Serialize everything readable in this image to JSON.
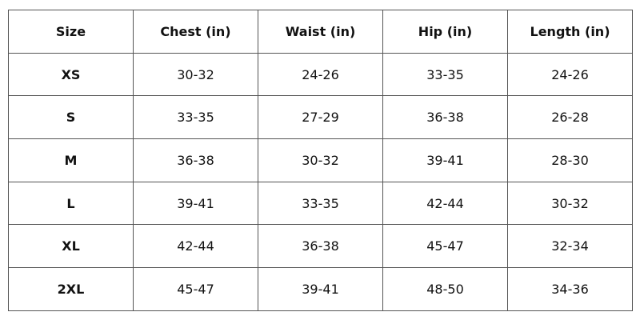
{
  "table": {
    "header": [
      "Size",
      "Chest (in)",
      "Waist (in)",
      "Hip (in)",
      "Length (in)"
    ],
    "rows": [
      [
        "XS",
        "30-32",
        "24-26",
        "33-35",
        "24-26"
      ],
      [
        "S",
        "33-35",
        "27-29",
        "36-38",
        "26-28"
      ],
      [
        "M",
        "36-38",
        "30-32",
        "39-41",
        "28-30"
      ],
      [
        "L",
        "39-41",
        "33-35",
        "42-44",
        "30-32"
      ],
      [
        "XL",
        "42-44",
        "36-38",
        "45-47",
        "32-34"
      ],
      [
        "2XL",
        "45-47",
        "39-41",
        "48-50",
        "34-36"
      ]
    ]
  }
}
